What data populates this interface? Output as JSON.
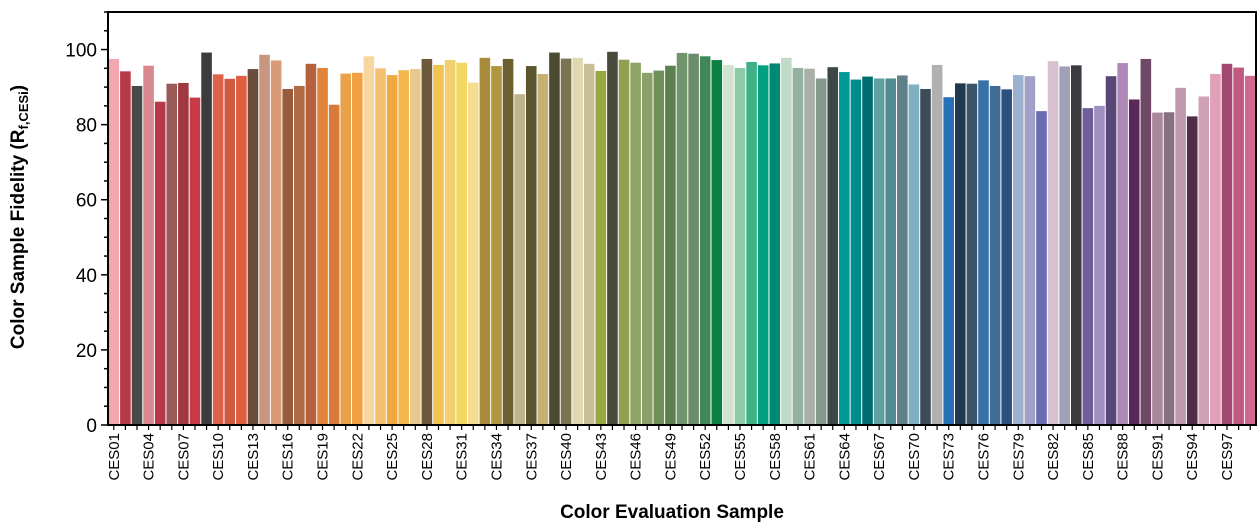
{
  "chart_data": {
    "type": "bar",
    "xlabel": "Color Evaluation Sample",
    "ylabel": "Color Sample Fidelity (R",
    "ylabel_sub": "f,CESi",
    "ylabel_close": ")",
    "ylim": [
      0,
      110
    ],
    "y_ticks": [
      0,
      20,
      40,
      60,
      80,
      100
    ],
    "grid": false,
    "categories": [
      "CES01",
      "CES02",
      "CES03",
      "CES04",
      "CES05",
      "CES06",
      "CES07",
      "CES08",
      "CES09",
      "CES10",
      "CES11",
      "CES12",
      "CES13",
      "CES14",
      "CES15",
      "CES16",
      "CES17",
      "CES18",
      "CES19",
      "CES20",
      "CES21",
      "CES22",
      "CES23",
      "CES24",
      "CES25",
      "CES26",
      "CES27",
      "CES28",
      "CES29",
      "CES30",
      "CES31",
      "CES32",
      "CES33",
      "CES34",
      "CES35",
      "CES36",
      "CES37",
      "CES38",
      "CES39",
      "CES40",
      "CES41",
      "CES42",
      "CES43",
      "CES44",
      "CES45",
      "CES46",
      "CES47",
      "CES48",
      "CES49",
      "CES50",
      "CES51",
      "CES52",
      "CES53",
      "CES54",
      "CES55",
      "CES56",
      "CES57",
      "CES58",
      "CES59",
      "CES60",
      "CES61",
      "CES62",
      "CES63",
      "CES64",
      "CES65",
      "CES66",
      "CES67",
      "CES68",
      "CES69",
      "CES70",
      "CES71",
      "CES72",
      "CES73",
      "CES74",
      "CES75",
      "CES76",
      "CES77",
      "CES78",
      "CES79",
      "CES80",
      "CES81",
      "CES82",
      "CES83",
      "CES84",
      "CES85",
      "CES86",
      "CES87",
      "CES88",
      "CES89",
      "CES90",
      "CES91",
      "CES92",
      "CES93",
      "CES94",
      "CES95",
      "CES96",
      "CES97",
      "CES98",
      "CES99"
    ],
    "shown_tick_labels": [
      "CES01",
      "CES04",
      "CES07",
      "CES10",
      "CES13",
      "CES16",
      "CES19",
      "CES22",
      "CES25",
      "CES28",
      "CES31",
      "CES34",
      "CES37",
      "CES40",
      "CES43",
      "CES46",
      "CES49",
      "CES52",
      "CES55",
      "CES58",
      "CES61",
      "CES64",
      "CES67",
      "CES70",
      "CES73",
      "CES76",
      "CES79",
      "CES82",
      "CES85",
      "CES88",
      "CES91",
      "CES94",
      "CES97"
    ],
    "values": [
      97.5,
      94.2,
      90.3,
      95.7,
      86.1,
      90.9,
      91.1,
      87.2,
      99.2,
      93.4,
      92.2,
      93.0,
      94.8,
      98.6,
      97.1,
      89.5,
      90.3,
      96.2,
      95.1,
      85.3,
      93.6,
      93.8,
      98.2,
      95.0,
      93.2,
      94.5,
      94.8,
      97.5,
      95.9,
      97.2,
      96.5,
      91.2,
      97.8,
      95.6,
      97.5,
      88.1,
      95.6,
      93.5,
      99.2,
      97.6,
      97.8,
      96.2,
      94.3,
      99.4,
      97.3,
      96.5,
      93.8,
      94.4,
      95.7,
      99.1,
      98.9,
      98.2,
      97.2,
      95.9,
      95.1,
      96.7,
      95.8,
      96.3,
      97.8,
      95.1,
      94.9,
      92.3,
      95.3,
      94.0,
      92.0,
      92.8,
      92.3,
      92.3,
      93.1,
      90.7,
      89.5,
      95.9,
      87.3,
      91.0,
      90.9,
      91.8,
      90.3,
      89.4,
      93.2,
      92.9,
      83.6,
      96.9,
      95.5,
      95.8,
      84.4,
      85.0,
      92.9,
      96.4,
      86.7,
      97.5,
      83.2,
      83.3,
      89.8,
      82.2,
      87.5,
      93.5,
      96.2,
      95.2,
      93.0
    ],
    "colors": [
      "#f4a6b0",
      "#b83a48",
      "#4a4a4a",
      "#d98890",
      "#b53a48",
      "#9a5a58",
      "#a13840",
      "#c83a48",
      "#3c3c3c",
      "#e0614a",
      "#cf5a3e",
      "#e05d40",
      "#6a4c3a",
      "#c8967e",
      "#d99a78",
      "#9a5a3c",
      "#b06b46",
      "#b5623c",
      "#e0843a",
      "#d97a3a",
      "#e8a24a",
      "#f0a040",
      "#f8d6a0",
      "#f4c070",
      "#f0a840",
      "#f4b850",
      "#e8c88c",
      "#6c5a3a",
      "#f0c450",
      "#f2d070",
      "#f2d860",
      "#f4dc90",
      "#a88c3a",
      "#b0963c",
      "#6c6030",
      "#c0b48c",
      "#5c5630",
      "#c8b070",
      "#4c4a30",
      "#7a7450",
      "#e0d8b0",
      "#c8c098",
      "#98a840",
      "#4a4a3c",
      "#90a050",
      "#8ca468",
      "#8aa068",
      "#70905a",
      "#5a8050",
      "#70946c",
      "#6c8c6c",
      "#408858",
      "#0c8040",
      "#d0e4d0",
      "#8ccaa8",
      "#40b088",
      "#00a080",
      "#008870",
      "#c0dcc8",
      "#94b0a0",
      "#a8b0a8",
      "#86988c",
      "#3c4848",
      "#009898",
      "#008c8c",
      "#006c70",
      "#60a0a0",
      "#508c90",
      "#608088",
      "#80b0c0",
      "#3c4c58",
      "#b0b0b0",
      "#2870b8",
      "#203850",
      "#3c5468",
      "#3870a8",
      "#406c98",
      "#2c5080",
      "#9cb0d0",
      "#a0a0c8",
      "#6c6cb0",
      "#d8c0d0",
      "#a0a0b8",
      "#3c3c40",
      "#705c98",
      "#a090c0",
      "#584878",
      "#b088b8",
      "#582858",
      "#704868",
      "#a88898",
      "#887080",
      "#c098b0",
      "#502c48",
      "#d0a0b4",
      "#e0a0b8",
      "#a04870",
      "#c05880",
      "#d06890"
    ]
  }
}
